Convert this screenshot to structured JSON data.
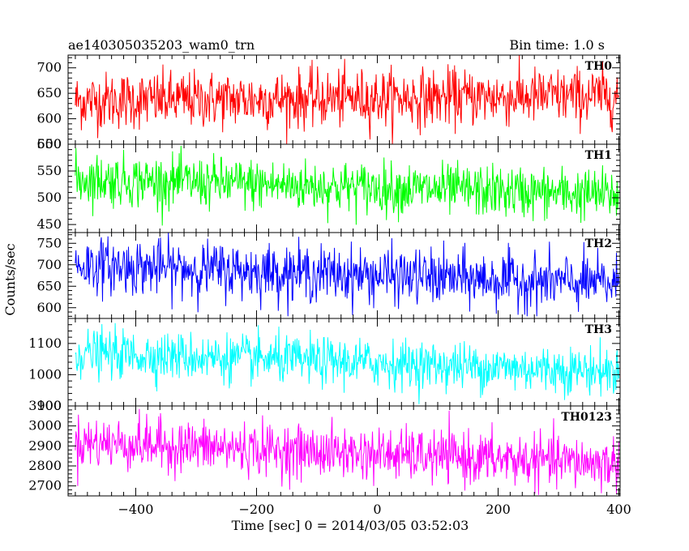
{
  "chart_data": {
    "type": "line",
    "title": "ae140305035203_wam0_trn",
    "subtitle": "Bin time: 1.0 s",
    "xlabel": "Time [sec] 0 = 2014/03/05 03:52:03",
    "ylabel": "Counts/sec",
    "xlim": [
      -512,
      402
    ],
    "x_range": [
      -500,
      400
    ],
    "x_ticks": [
      -400,
      -200,
      0,
      200,
      400
    ],
    "x_tick_labels": [
      "−400",
      "−200",
      "0",
      "200",
      "400"
    ],
    "grid": false,
    "panels": [
      {
        "name": "TH0",
        "color": "#ff0000",
        "ylim": [
          550,
          725
        ],
        "y_ticks": [
          550,
          600,
          650,
          700
        ],
        "y_tick_labels": [
          "550",
          "600",
          "650",
          "700"
        ],
        "mean_start": 635,
        "mean_end": 645,
        "noise": 28,
        "min": 550,
        "max": 725
      },
      {
        "name": "TH1",
        "color": "#00ff00",
        "ylim": [
          435,
          600
        ],
        "y_ticks": [
          450,
          500,
          550,
          600
        ],
        "y_tick_labels": [
          "450",
          "500",
          "550",
          "600"
        ],
        "mean_start": 535,
        "mean_end": 505,
        "noise": 24,
        "min": 448,
        "max": 597
      },
      {
        "name": "TH2",
        "color": "#0000ff",
        "ylim": [
          575,
          775
        ],
        "y_ticks": [
          600,
          650,
          700,
          750
        ],
        "y_tick_labels": [
          "600",
          "650",
          "700",
          "750"
        ],
        "mean_start": 700,
        "mean_end": 655,
        "noise": 32,
        "min": 580,
        "max": 775
      },
      {
        "name": "TH3",
        "color": "#00ffff",
        "ylim": [
          900,
          1180
        ],
        "y_ticks": [
          900,
          1000,
          1100
        ],
        "y_tick_labels": [
          "900",
          "1000",
          "1100"
        ],
        "mean_start": 1070,
        "mean_end": 1010,
        "noise": 38,
        "min": 905,
        "max": 1175
      },
      {
        "name": "TH0123",
        "color": "#ff00ff",
        "ylim": [
          2650,
          3100
        ],
        "y_ticks": [
          2700,
          2800,
          2900,
          3000,
          3100
        ],
        "y_tick_labels": [
          "2700",
          "2800",
          "2900",
          "3000",
          "3100"
        ],
        "mean_start": 2920,
        "mean_end": 2810,
        "noise": 65,
        "min": 2655,
        "max": 3095
      }
    ]
  }
}
